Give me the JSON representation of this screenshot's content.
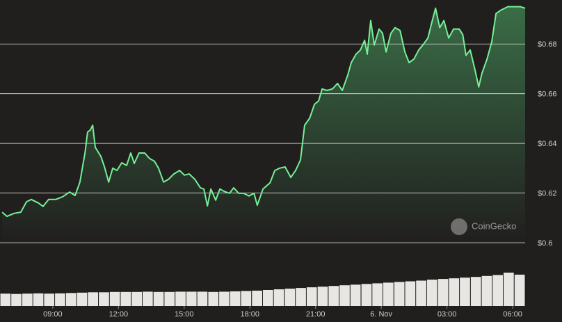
{
  "chart_data": {
    "type": "area",
    "watermark": "CoinGecko",
    "x": [
      6.69,
      6.91,
      7.23,
      7.54,
      7.8,
      8.02,
      8.34,
      8.56,
      8.81,
      9.13,
      9.45,
      9.77,
      10.02,
      10.24,
      10.47,
      10.59,
      10.72,
      10.82,
      10.94,
      11.2,
      11.36,
      11.55,
      11.74,
      11.93,
      12.15,
      12.37,
      12.56,
      12.72,
      12.94,
      13.2,
      13.42,
      13.64,
      13.83,
      14.06,
      14.28,
      14.53,
      14.79,
      15.01,
      15.23,
      15.49,
      15.74,
      15.9,
      16.06,
      16.22,
      16.44,
      16.63,
      16.82,
      17.07,
      17.26,
      17.49,
      17.71,
      17.96,
      18.19,
      18.34,
      18.6,
      18.92,
      19.14,
      19.36,
      19.61,
      19.87,
      20.09,
      20.31,
      20.5,
      20.73,
      20.95,
      21.14,
      21.3,
      21.52,
      21.77,
      22.0,
      22.22,
      22.47,
      22.63,
      22.85,
      23.05,
      23.24,
      23.36,
      23.52,
      23.68,
      23.9,
      24.06,
      24.22,
      24.44,
      24.63,
      24.86,
      25.08,
      25.27,
      25.49,
      25.71,
      25.9,
      26.13,
      26.29,
      26.48,
      26.67,
      26.86,
      27.08,
      27.3,
      27.56,
      27.72,
      27.87,
      28.06,
      28.26,
      28.45,
      28.6,
      28.83,
      29.05,
      29.24,
      29.46,
      29.78,
      30.03,
      30.35,
      30.57
    ],
    "series": [
      {
        "color": "#74f095",
        "values": [
          0.6123,
          0.6106,
          0.6118,
          0.6123,
          0.6165,
          0.6174,
          0.616,
          0.6146,
          0.6174,
          0.6174,
          0.6185,
          0.6204,
          0.619,
          0.6244,
          0.6361,
          0.6445,
          0.6454,
          0.6473,
          0.6384,
          0.6347,
          0.6305,
          0.6244,
          0.63,
          0.6291,
          0.6322,
          0.6311,
          0.6361,
          0.6319,
          0.6361,
          0.6361,
          0.6339,
          0.6328,
          0.63,
          0.6244,
          0.6255,
          0.6277,
          0.6291,
          0.6272,
          0.6277,
          0.6255,
          0.6221,
          0.6216,
          0.6148,
          0.6216,
          0.6171,
          0.6216,
          0.6207,
          0.6199,
          0.6221,
          0.6199,
          0.6199,
          0.6188,
          0.6199,
          0.6151,
          0.6216,
          0.6241,
          0.6291,
          0.63,
          0.6305,
          0.6263,
          0.6291,
          0.6333,
          0.6473,
          0.6501,
          0.6557,
          0.6571,
          0.6619,
          0.6613,
          0.6619,
          0.6641,
          0.6613,
          0.6675,
          0.6725,
          0.6759,
          0.6776,
          0.6815,
          0.6759,
          0.6894,
          0.6796,
          0.686,
          0.6843,
          0.6768,
          0.6843,
          0.6866,
          0.6854,
          0.6768,
          0.6725,
          0.6739,
          0.6776,
          0.6796,
          0.6824,
          0.688,
          0.6944,
          0.6866,
          0.6894,
          0.6824,
          0.686,
          0.686,
          0.6838,
          0.6754,
          0.6776,
          0.6703,
          0.6627,
          0.6683,
          0.6739,
          0.681,
          0.6922,
          0.6936,
          0.695,
          0.695,
          0.695,
          0.6944
        ]
      }
    ],
    "volume": {
      "color": "#e8e6e3",
      "values": [
        37,
        36,
        37,
        38,
        37,
        38,
        39,
        40,
        41,
        41,
        42,
        42,
        42,
        43,
        42,
        42,
        43,
        43,
        43,
        42,
        43,
        44,
        45,
        46,
        48,
        50,
        52,
        54,
        56,
        58,
        60,
        62,
        64,
        66,
        68,
        70,
        72,
        74,
        76,
        79,
        81,
        83,
        85,
        87,
        90,
        93,
        100,
        94
      ]
    },
    "xlim": [
      6.59,
      30.57
    ],
    "xticks": [
      {
        "value": 9,
        "label": "09:00"
      },
      {
        "value": 12,
        "label": "12:00"
      },
      {
        "value": 15,
        "label": "15:00"
      },
      {
        "value": 18,
        "label": "18:00"
      },
      {
        "value": 21,
        "label": "21:00"
      },
      {
        "value": 24,
        "label": "6. Nov"
      },
      {
        "value": 27,
        "label": "03:00"
      },
      {
        "value": 30,
        "label": "06:00"
      }
    ],
    "ylim": [
      0.6,
      0.6977
    ],
    "yticks": [
      {
        "value": 0.6,
        "label": "$0.6"
      },
      {
        "value": 0.62,
        "label": "$0.62"
      },
      {
        "value": 0.64,
        "label": "$0.64"
      },
      {
        "value": 0.66,
        "label": "$0.66"
      },
      {
        "value": 0.68,
        "label": "$0.68"
      }
    ],
    "grid": true
  }
}
